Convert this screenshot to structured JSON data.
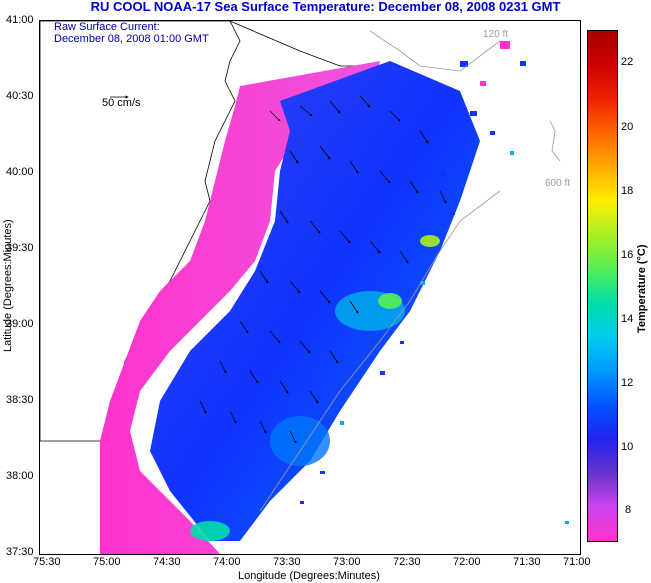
{
  "title": "RU COOL  NOAA-17  Sea Surface Temperature:  December 08, 2008 0231 GMT",
  "annotation": {
    "line1": "Raw Surface Current:",
    "line2": "December 08, 2008 01:00 GMT",
    "scale_label": "50 cm/s"
  },
  "isobaths": {
    "shallow": "120 ft",
    "deep": "600 ft"
  },
  "axes": {
    "xlabel": "Longitude (Degrees:Minutes)",
    "ylabel": "Latitude (Degrees:Minutes)",
    "xticks": [
      "75:30",
      "75:00",
      "74:30",
      "74:00",
      "73:30",
      "73:00",
      "72:30",
      "72:00",
      "71:30",
      "71:00"
    ],
    "yticks": [
      "41:00",
      "40:30",
      "40:00",
      "39:30",
      "39:00",
      "38:30",
      "38:00",
      "37:30"
    ]
  },
  "colorbar": {
    "label": "Temperature (°C)",
    "ticks": [
      "22",
      "20",
      "18",
      "16",
      "14",
      "12",
      "10",
      "8"
    ],
    "range": [
      7,
      23
    ],
    "colors": [
      "#ff33cc",
      "#cc44ee",
      "#6633cc",
      "#2222ee",
      "#0055ff",
      "#0099ff",
      "#00ccee",
      "#00ddaa",
      "#55ee55",
      "#aaee22",
      "#ffee00",
      "#ffaa00",
      "#ff6600",
      "#ee2200",
      "#cc0000",
      "#aa0000"
    ]
  }
}
